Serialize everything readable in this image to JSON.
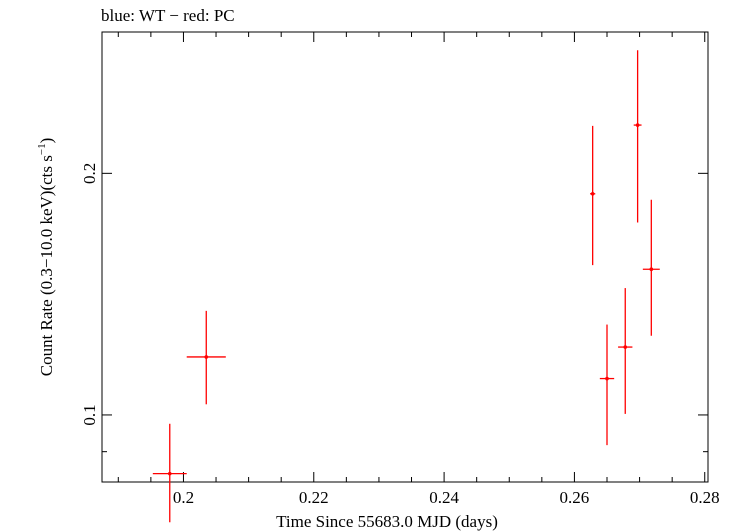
{
  "chart_data": {
    "type": "scatter",
    "title": "blue: WT − red: PC",
    "xlabel": "Time Since 55683.0 MJD (days)",
    "ylabel_main": "Count Rate (0.3−10.0 keV)(cts s",
    "ylabel_sup": "−1",
    "ylabel_close": ")",
    "xlim": [
      0.1875,
      0.2805
    ],
    "ylim": [
      0.0825,
      0.3
    ],
    "y_scale": "log",
    "x_ticks": [
      {
        "value": 0.2,
        "label": "0.2"
      },
      {
        "value": 0.22,
        "label": "0.22"
      },
      {
        "value": 0.24,
        "label": "0.24"
      },
      {
        "value": 0.26,
        "label": "0.26"
      },
      {
        "value": 0.28,
        "label": "0.28"
      }
    ],
    "y_ticks": [
      {
        "value": 0.1,
        "label": "0.1"
      },
      {
        "value": 0.2,
        "label": "0.2"
      }
    ],
    "series": [
      {
        "mode": "PC",
        "color": "#ff0000",
        "points": [
          {
            "x": 0.1979,
            "xerr_lo": 0.0026,
            "xerr_hi": 0.0026,
            "y": 0.0845,
            "y_lo": 0.0735,
            "y_hi": 0.0975
          },
          {
            "x": 0.2035,
            "xerr_lo": 0.003,
            "xerr_hi": 0.003,
            "y": 0.1181,
            "y_lo": 0.1031,
            "y_hi": 0.1348
          },
          {
            "x": 0.2628,
            "xerr_lo": 0.0004,
            "xerr_hi": 0.0004,
            "y": 0.1886,
            "y_lo": 0.1537,
            "y_hi": 0.2292
          },
          {
            "x": 0.265,
            "xerr_lo": 0.0011,
            "xerr_hi": 0.0011,
            "y": 0.111,
            "y_lo": 0.0917,
            "y_hi": 0.1296
          },
          {
            "x": 0.2678,
            "xerr_lo": 0.0011,
            "xerr_hi": 0.0011,
            "y": 0.1215,
            "y_lo": 0.1003,
            "y_hi": 0.1439
          },
          {
            "x": 0.2697,
            "xerr_lo": 0.0006,
            "xerr_hi": 0.0006,
            "y": 0.2297,
            "y_lo": 0.1737,
            "y_hi": 0.2847
          },
          {
            "x": 0.2718,
            "xerr_lo": 0.0013,
            "xerr_hi": 0.0013,
            "y": 0.1519,
            "y_lo": 0.1255,
            "y_hi": 0.1854
          }
        ]
      }
    ]
  }
}
